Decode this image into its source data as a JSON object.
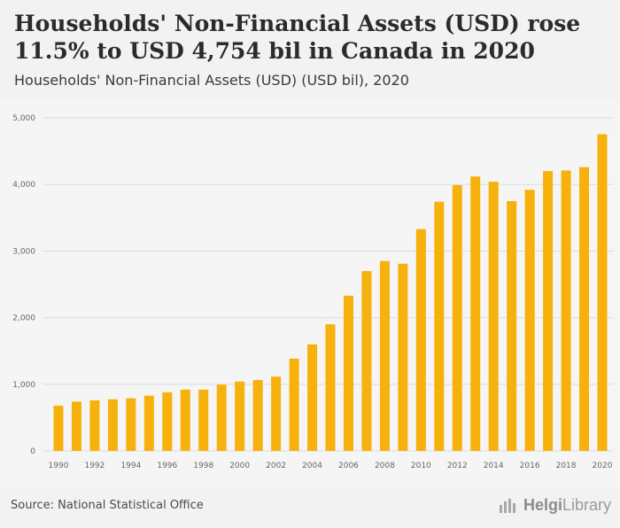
{
  "header": {
    "title": "Households' Non-Financial Assets (USD) rose 11.5% to USD 4,754 bil in Canada in 2020",
    "subtitle": "Households' Non-Financial Assets (USD) (USD bil), 2020"
  },
  "footer": {
    "source": "Source: National Statistical Office",
    "brand_part1": "Helgi",
    "brand_part2": "Library"
  },
  "colors": {
    "bar": "#f7b10c",
    "grid": "#dcdcdc",
    "background": "#f5f5f5"
  },
  "chart_data": {
    "type": "bar",
    "title": "Households' Non-Financial Assets (USD) (USD bil), 2020",
    "xlabel": "",
    "ylabel": "",
    "ylim": [
      0,
      5000
    ],
    "yticks": [
      0,
      1000,
      2000,
      3000,
      4000,
      5000
    ],
    "ytick_labels": [
      "0",
      "1,000",
      "2,000",
      "3,000",
      "4,000",
      "5,000"
    ],
    "grid": true,
    "categories": [
      "1990",
      "1991",
      "1992",
      "1993",
      "1994",
      "1995",
      "1996",
      "1997",
      "1998",
      "1999",
      "2000",
      "2001",
      "2002",
      "2003",
      "2004",
      "2005",
      "2006",
      "2007",
      "2008",
      "2009",
      "2010",
      "2011",
      "2012",
      "2013",
      "2014",
      "2015",
      "2016",
      "2017",
      "2018",
      "2019",
      "2020"
    ],
    "xtick_labels": [
      "1990",
      "1992",
      "1994",
      "1996",
      "1998",
      "2000",
      "2002",
      "2004",
      "2006",
      "2008",
      "2010",
      "2012",
      "2014",
      "2016",
      "2018",
      "2020"
    ],
    "values": [
      680,
      740,
      760,
      775,
      790,
      830,
      880,
      920,
      920,
      995,
      1040,
      1065,
      1115,
      1385,
      1600,
      1900,
      2330,
      2700,
      2850,
      2810,
      3330,
      3740,
      3990,
      4120,
      4040,
      3750,
      3920,
      4200,
      4210,
      4260,
      4754
    ]
  }
}
